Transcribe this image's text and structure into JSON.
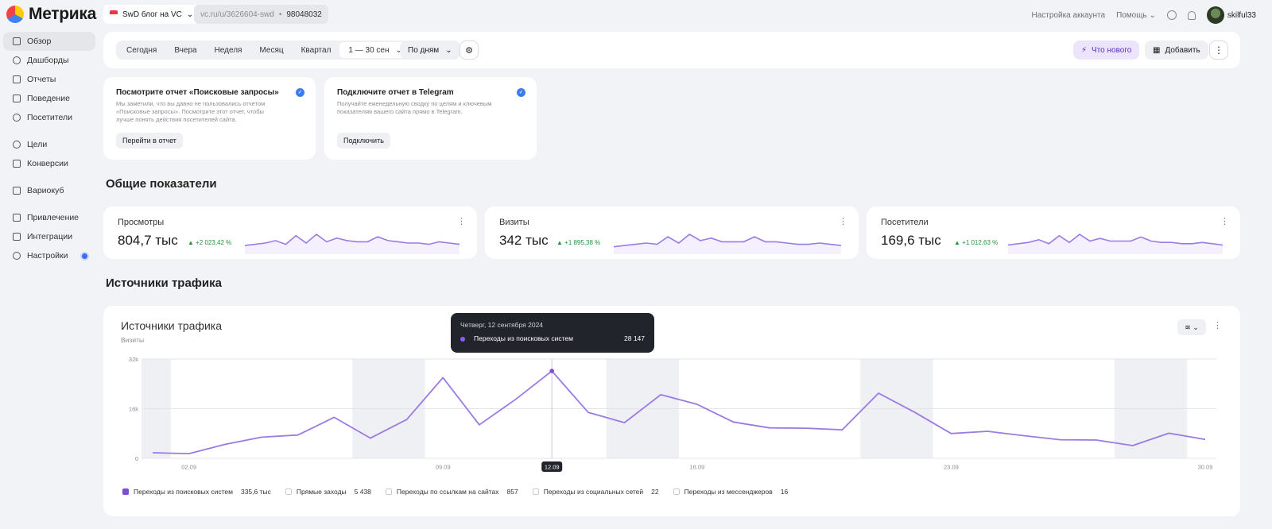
{
  "app": {
    "logo": "Метрика"
  },
  "header": {
    "site_name": "SwD блог на VC",
    "site_url": "vc.ru/u/3626604-swd",
    "counter_id": "98048032",
    "account_settings": "Настройка аккаунта",
    "help": "Помощь",
    "username": "skilful33"
  },
  "sidebar": {
    "items": [
      {
        "label": "Обзор"
      },
      {
        "label": "Дашборды"
      },
      {
        "label": "Отчеты"
      },
      {
        "label": "Поведение"
      },
      {
        "label": "Посетители"
      },
      {
        "label": "Цели"
      },
      {
        "label": "Конверсии"
      },
      {
        "label": "Вариокуб"
      },
      {
        "label": "Привлечение"
      },
      {
        "label": "Интеграции"
      },
      {
        "label": "Настройки"
      }
    ]
  },
  "filters": {
    "periods": [
      "Сегодня",
      "Вчера",
      "Неделя",
      "Месяц",
      "Квартал"
    ],
    "range": "1 — 30 сен",
    "grouping": "По дням",
    "whats_new": "Что нового",
    "add": "Добавить"
  },
  "promos": [
    {
      "title": "Посмотрите отчет «Поисковые запросы»",
      "text": "Мы заметили, что вы давно не пользовались отчетом «Поисковые запросы». Посмотрите этот отчет, чтобы лучше понять действия посетителей сайта.",
      "button": "Перейти в отчет"
    },
    {
      "title": "Подключите отчет в Telegram",
      "text": "Получайте еженедельную сводку по целям и ключевым показателям вашего сайта прямо в Telegram.",
      "button": "Подключить"
    }
  ],
  "sections": {
    "overview": "Общие показатели",
    "traffic": "Источники трафика"
  },
  "metrics": [
    {
      "label": "Просмотры",
      "value": "804,7 тыс",
      "delta": "▲ +2 023,42 %"
    },
    {
      "label": "Визиты",
      "value": "342 тыс",
      "delta": "▲ +1 895,38 %"
    },
    {
      "label": "Посетители",
      "value": "169,6 тыс",
      "delta": "▲ +1 012,63 %"
    }
  ],
  "traffic_card": {
    "title": "Источники трафика",
    "subtitle": "Визиты",
    "tooltip": {
      "date": "Четверг, 12 сентября 2024",
      "series": "Переходы из поисковых систем",
      "value": "28 147"
    },
    "legend": [
      {
        "label": "Переходы из поисковых систем",
        "value": "335,6 тыс",
        "checked": true
      },
      {
        "label": "Прямые заходы",
        "value": "5 438",
        "checked": false
      },
      {
        "label": "Переходы по ссылкам на сайтах",
        "value": "857",
        "checked": false
      },
      {
        "label": "Переходы из социальных сетей",
        "value": "22",
        "checked": false
      },
      {
        "label": "Переходы из мессенджеров",
        "value": "16",
        "checked": false
      }
    ]
  },
  "colors": {
    "accent": "#7c4ddb",
    "line": "#9b7ae3",
    "positive": "#1a9a3c"
  },
  "chart_data": [
    {
      "type": "line",
      "y_tick_labels": [
        "0",
        "16k",
        "32k"
      ],
      "x_tick_labels": [
        "02.09",
        "09.09",
        "12.09",
        "16.09",
        "23.09",
        "30.09"
      ],
      "highlighted_tick": "12.09",
      "ylim": [
        0,
        32000
      ],
      "x": [
        "01.09",
        "02.09",
        "03.09",
        "04.09",
        "05.09",
        "06.09",
        "07.09",
        "08.09",
        "09.09",
        "10.09",
        "11.09",
        "12.09",
        "13.09",
        "14.09",
        "15.09",
        "16.09",
        "17.09",
        "18.09",
        "19.09",
        "20.09",
        "21.09",
        "22.09",
        "23.09",
        "24.09",
        "25.09",
        "26.09",
        "27.09",
        "28.09",
        "29.09",
        "30.09"
      ],
      "series": [
        {
          "name": "Переходы из поисковых систем",
          "values": [
            1800,
            1500,
            4500,
            6800,
            7500,
            13200,
            6500,
            12500,
            26000,
            10800,
            19000,
            28147,
            14800,
            11500,
            20500,
            17400,
            11700,
            9800,
            9700,
            9200,
            21000,
            14800,
            8000,
            8700,
            7300,
            6000,
            5900,
            4100,
            8100,
            6100
          ]
        }
      ],
      "shaded_ranges": [
        [
          "01.09",
          "01.09"
        ],
        [
          "07.09",
          "08.09"
        ],
        [
          "14.09",
          "15.09"
        ],
        [
          "21.09",
          "22.09"
        ],
        [
          "28.09",
          "29.09"
        ]
      ]
    }
  ],
  "sparklines": [
    [
      5,
      6,
      7,
      9,
      6,
      13,
      7,
      14,
      8,
      11,
      9,
      8,
      8,
      12,
      9,
      8,
      7,
      7,
      6,
      8,
      7,
      6
    ],
    [
      4,
      5,
      6,
      7,
      6,
      12,
      7,
      14,
      9,
      11,
      8,
      8,
      8,
      12,
      8,
      8,
      7,
      6,
      6,
      7,
      6,
      5
    ],
    [
      5,
      6,
      7,
      9,
      6,
      12,
      7,
      13,
      8,
      10,
      8,
      8,
      8,
      11,
      8,
      7,
      7,
      6,
      6,
      7,
      6,
      5
    ]
  ]
}
